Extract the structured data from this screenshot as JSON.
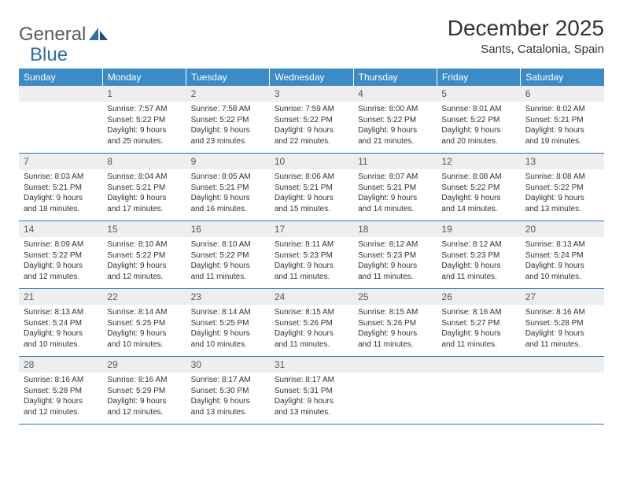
{
  "logo": {
    "part1": "General",
    "part2": "Blue"
  },
  "title": "December 2025",
  "location": "Sants, Catalonia, Spain",
  "colors": {
    "header_bg": "#3b8bc6",
    "header_text": "#ffffff",
    "daynum_bg": "#eeeeee",
    "border": "#2f6fa7",
    "logo_gray": "#5a5a5a",
    "logo_blue": "#2f6fa7"
  },
  "weekdays": [
    "Sunday",
    "Monday",
    "Tuesday",
    "Wednesday",
    "Thursday",
    "Friday",
    "Saturday"
  ],
  "weeks": [
    {
      "nums": [
        "",
        "1",
        "2",
        "3",
        "4",
        "5",
        "6"
      ],
      "cells": [
        null,
        {
          "sunrise": "7:57 AM",
          "sunset": "5:22 PM",
          "daylight": "9 hours and 25 minutes."
        },
        {
          "sunrise": "7:58 AM",
          "sunset": "5:22 PM",
          "daylight": "9 hours and 23 minutes."
        },
        {
          "sunrise": "7:59 AM",
          "sunset": "5:22 PM",
          "daylight": "9 hours and 22 minutes."
        },
        {
          "sunrise": "8:00 AM",
          "sunset": "5:22 PM",
          "daylight": "9 hours and 21 minutes."
        },
        {
          "sunrise": "8:01 AM",
          "sunset": "5:22 PM",
          "daylight": "9 hours and 20 minutes."
        },
        {
          "sunrise": "8:02 AM",
          "sunset": "5:21 PM",
          "daylight": "9 hours and 19 minutes."
        }
      ]
    },
    {
      "nums": [
        "7",
        "8",
        "9",
        "10",
        "11",
        "12",
        "13"
      ],
      "cells": [
        {
          "sunrise": "8:03 AM",
          "sunset": "5:21 PM",
          "daylight": "9 hours and 18 minutes."
        },
        {
          "sunrise": "8:04 AM",
          "sunset": "5:21 PM",
          "daylight": "9 hours and 17 minutes."
        },
        {
          "sunrise": "8:05 AM",
          "sunset": "5:21 PM",
          "daylight": "9 hours and 16 minutes."
        },
        {
          "sunrise": "8:06 AM",
          "sunset": "5:21 PM",
          "daylight": "9 hours and 15 minutes."
        },
        {
          "sunrise": "8:07 AM",
          "sunset": "5:21 PM",
          "daylight": "9 hours and 14 minutes."
        },
        {
          "sunrise": "8:08 AM",
          "sunset": "5:22 PM",
          "daylight": "9 hours and 14 minutes."
        },
        {
          "sunrise": "8:08 AM",
          "sunset": "5:22 PM",
          "daylight": "9 hours and 13 minutes."
        }
      ]
    },
    {
      "nums": [
        "14",
        "15",
        "16",
        "17",
        "18",
        "19",
        "20"
      ],
      "cells": [
        {
          "sunrise": "8:09 AM",
          "sunset": "5:22 PM",
          "daylight": "9 hours and 12 minutes."
        },
        {
          "sunrise": "8:10 AM",
          "sunset": "5:22 PM",
          "daylight": "9 hours and 12 minutes."
        },
        {
          "sunrise": "8:10 AM",
          "sunset": "5:22 PM",
          "daylight": "9 hours and 11 minutes."
        },
        {
          "sunrise": "8:11 AM",
          "sunset": "5:23 PM",
          "daylight": "9 hours and 11 minutes."
        },
        {
          "sunrise": "8:12 AM",
          "sunset": "5:23 PM",
          "daylight": "9 hours and 11 minutes."
        },
        {
          "sunrise": "8:12 AM",
          "sunset": "5:23 PM",
          "daylight": "9 hours and 11 minutes."
        },
        {
          "sunrise": "8:13 AM",
          "sunset": "5:24 PM",
          "daylight": "9 hours and 10 minutes."
        }
      ]
    },
    {
      "nums": [
        "21",
        "22",
        "23",
        "24",
        "25",
        "26",
        "27"
      ],
      "cells": [
        {
          "sunrise": "8:13 AM",
          "sunset": "5:24 PM",
          "daylight": "9 hours and 10 minutes."
        },
        {
          "sunrise": "8:14 AM",
          "sunset": "5:25 PM",
          "daylight": "9 hours and 10 minutes."
        },
        {
          "sunrise": "8:14 AM",
          "sunset": "5:25 PM",
          "daylight": "9 hours and 10 minutes."
        },
        {
          "sunrise": "8:15 AM",
          "sunset": "5:26 PM",
          "daylight": "9 hours and 11 minutes."
        },
        {
          "sunrise": "8:15 AM",
          "sunset": "5:26 PM",
          "daylight": "9 hours and 11 minutes."
        },
        {
          "sunrise": "8:16 AM",
          "sunset": "5:27 PM",
          "daylight": "9 hours and 11 minutes."
        },
        {
          "sunrise": "8:16 AM",
          "sunset": "5:28 PM",
          "daylight": "9 hours and 11 minutes."
        }
      ]
    },
    {
      "nums": [
        "28",
        "29",
        "30",
        "31",
        "",
        "",
        ""
      ],
      "cells": [
        {
          "sunrise": "8:16 AM",
          "sunset": "5:28 PM",
          "daylight": "9 hours and 12 minutes."
        },
        {
          "sunrise": "8:16 AM",
          "sunset": "5:29 PM",
          "daylight": "9 hours and 12 minutes."
        },
        {
          "sunrise": "8:17 AM",
          "sunset": "5:30 PM",
          "daylight": "9 hours and 13 minutes."
        },
        {
          "sunrise": "8:17 AM",
          "sunset": "5:31 PM",
          "daylight": "9 hours and 13 minutes."
        },
        null,
        null,
        null
      ]
    }
  ],
  "labels": {
    "sunrise": "Sunrise: ",
    "sunset": "Sunset: ",
    "daylight": "Daylight: "
  }
}
